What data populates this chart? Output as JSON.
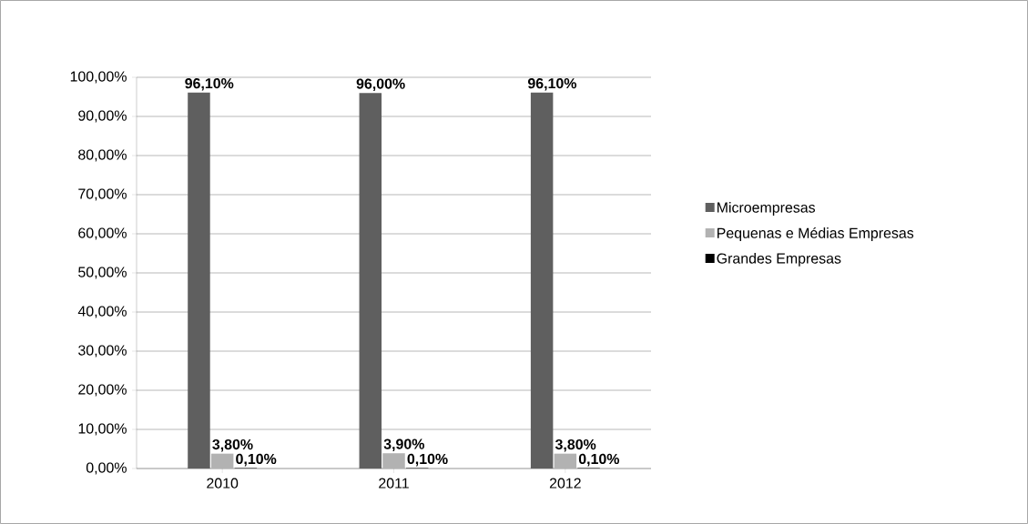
{
  "chart_data": {
    "type": "bar",
    "categories": [
      "2010",
      "2011",
      "2012"
    ],
    "series": [
      {
        "name": "Microempresas",
        "color": "#5f5f5f",
        "values": [
          96.1,
          96.0,
          96.1
        ],
        "value_labels": [
          "96,10%",
          "96,00%",
          "96,10%"
        ]
      },
      {
        "name": "Pequenas e Médias Empresas",
        "color": "#b2b2b2",
        "values": [
          3.8,
          3.9,
          3.8
        ],
        "value_labels": [
          "3,80%",
          "3,90%",
          "3,80%"
        ]
      },
      {
        "name": "Grandes Empresas",
        "color": "#000000",
        "values": [
          0.1,
          0.1,
          0.1
        ],
        "value_labels": [
          "0,10%",
          "0,10%",
          "0,10%"
        ]
      }
    ],
    "ylim": [
      0,
      100
    ],
    "yticks": [
      {
        "value": 0,
        "label": "0,00%"
      },
      {
        "value": 10,
        "label": "10,00%"
      },
      {
        "value": 20,
        "label": "20,00%"
      },
      {
        "value": 30,
        "label": "30,00%"
      },
      {
        "value": 40,
        "label": "40,00%"
      },
      {
        "value": 50,
        "label": "50,00%"
      },
      {
        "value": 60,
        "label": "60,00%"
      },
      {
        "value": 70,
        "label": "70,00%"
      },
      {
        "value": 80,
        "label": "80,00%"
      },
      {
        "value": 90,
        "label": "90,00%"
      },
      {
        "value": 100,
        "label": "100,00%"
      }
    ],
    "grid": "y",
    "legend": "right"
  }
}
